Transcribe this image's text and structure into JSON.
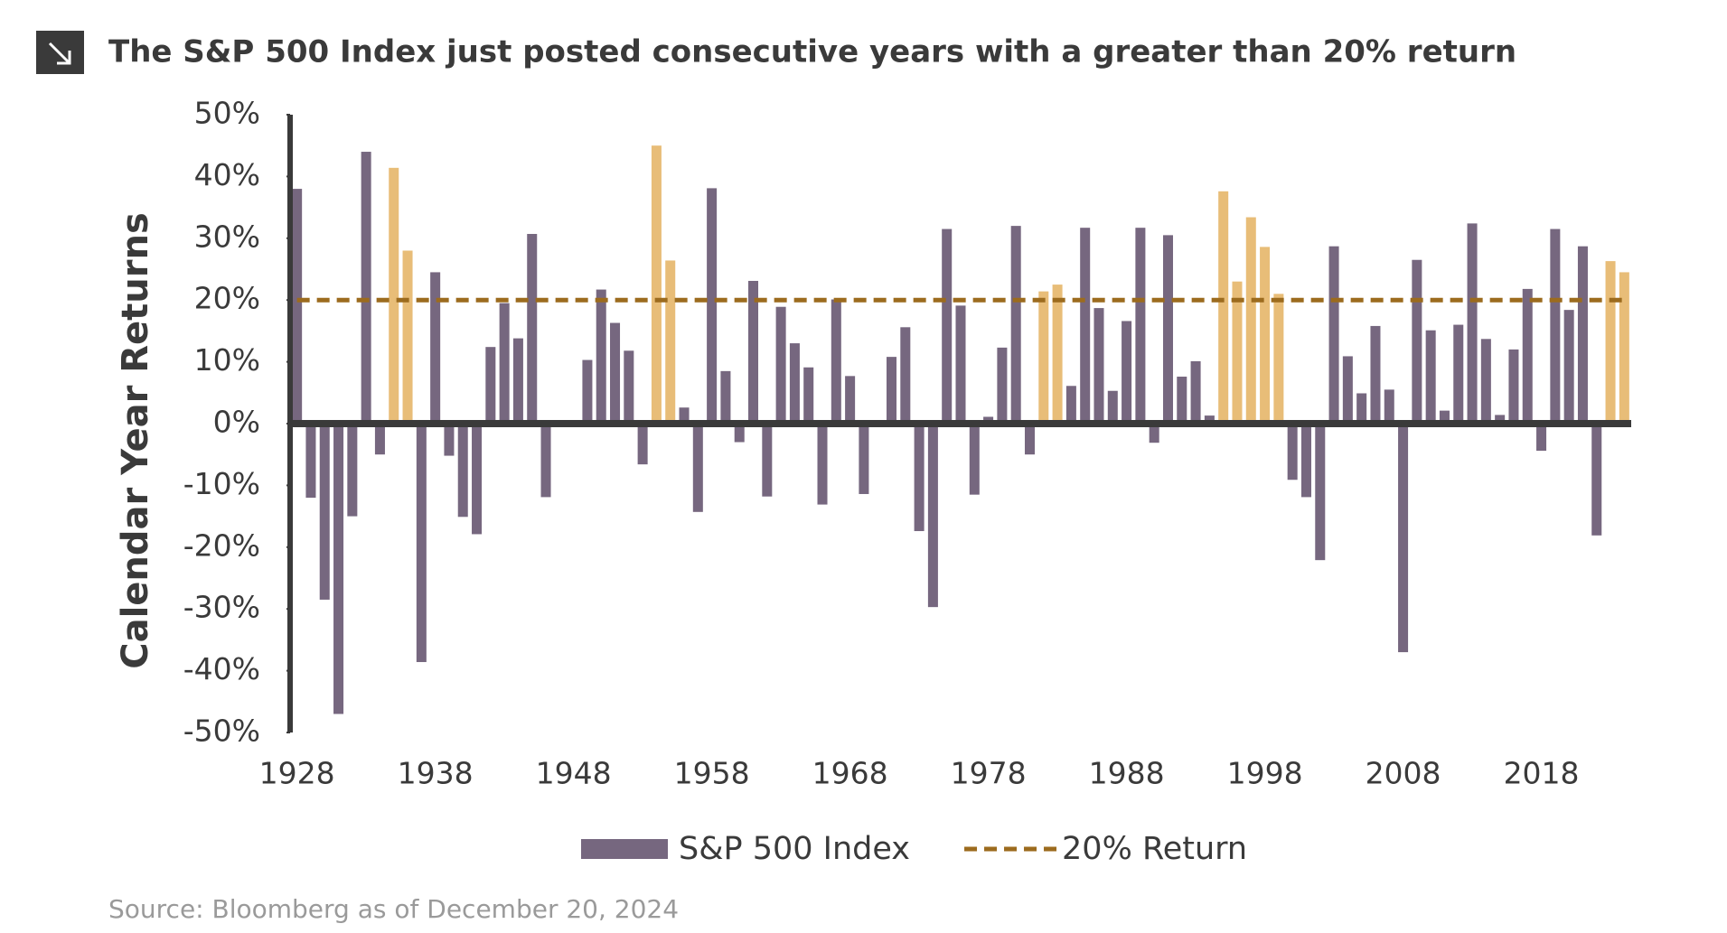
{
  "chart_data": {
    "type": "bar",
    "title": "The S&P 500 Index just posted consecutive years with a greater than 20% return",
    "y_label": "Calendar Year Returns",
    "source": "Source: Bloomberg as of December 20, 2024",
    "x": [
      1928,
      1929,
      1930,
      1931,
      1932,
      1933,
      1934,
      1935,
      1936,
      1937,
      1938,
      1939,
      1940,
      1941,
      1942,
      1943,
      1944,
      1945,
      1946,
      1947,
      1948,
      1949,
      1950,
      1951,
      1952,
      1953,
      1954,
      1955,
      1956,
      1957,
      1958,
      1959,
      1960,
      1961,
      1962,
      1963,
      1964,
      1965,
      1966,
      1967,
      1968,
      1969,
      1970,
      1971,
      1972,
      1973,
      1974,
      1975,
      1976,
      1977,
      1978,
      1979,
      1980,
      1981,
      1982,
      1983,
      1984,
      1985,
      1986,
      1987,
      1988,
      1989,
      1990,
      1991,
      1992,
      1993,
      1994,
      1995,
      1996,
      1997,
      1998,
      1999,
      2000,
      2001,
      2002,
      2003,
      2004,
      2005,
      2006,
      2007,
      2008,
      2009,
      2010,
      2011,
      2012,
      2013,
      2014,
      2015,
      2016,
      2017,
      2018,
      2019,
      2020,
      2021,
      2022,
      2023,
      2024
    ],
    "xlim": [
      1927.5,
      2024.5
    ],
    "xticks": [
      1928,
      1938,
      1948,
      1958,
      1968,
      1978,
      1988,
      1998,
      2008,
      2018
    ],
    "ylim": [
      -50,
      50
    ],
    "yticks": [
      {
        "value": -50,
        "label": "-50%"
      },
      {
        "value": -40,
        "label": "-40%"
      },
      {
        "value": -30,
        "label": "-30%"
      },
      {
        "value": -20,
        "label": "-20%"
      },
      {
        "value": -10,
        "label": "-10%"
      },
      {
        "value": 0,
        "label": "0%"
      },
      {
        "value": 10,
        "label": "10%"
      },
      {
        "value": 20,
        "label": "20%"
      },
      {
        "value": 30,
        "label": "30%"
      },
      {
        "value": 40,
        "label": "40%"
      },
      {
        "value": 50,
        "label": "50%"
      }
    ],
    "series": [
      {
        "name": "S&P 500 Index",
        "color": "#76677f",
        "values": [
          38,
          -12,
          -28.5,
          -47,
          -15,
          44,
          -5,
          41.4,
          28,
          -38.6,
          24.5,
          -5.2,
          -15.1,
          -17.9,
          12.4,
          19.5,
          13.8,
          30.7,
          -11.9,
          0,
          0,
          10.3,
          21.7,
          16.3,
          11.8,
          -6.6,
          45,
          26.4,
          2.6,
          -14.3,
          38.1,
          8.5,
          -3,
          23.1,
          -11.8,
          18.9,
          13,
          9.1,
          -13.1,
          20.1,
          7.7,
          -11.4,
          0.1,
          10.8,
          15.6,
          -17.4,
          -29.7,
          31.5,
          19.1,
          -11.5,
          1.1,
          12.3,
          32,
          -5,
          21.4,
          22.5,
          6.1,
          31.7,
          18.7,
          5.3,
          16.6,
          31.7,
          -3.1,
          30.5,
          7.6,
          10.1,
          1.3,
          37.6,
          23,
          33.4,
          28.6,
          21,
          -9.1,
          -11.9,
          -22.1,
          28.7,
          10.9,
          4.9,
          15.8,
          5.5,
          -37,
          26.5,
          15.1,
          2.1,
          16,
          32.4,
          13.7,
          1.4,
          12,
          21.8,
          -4.4,
          31.5,
          18.4,
          28.7,
          -18.1,
          26.3,
          24.5
        ],
        "colors": [
          "#76677f",
          "#76677f",
          "#76677f",
          "#76677f",
          "#76677f",
          "#76677f",
          "#76677f",
          "#e8bd78",
          "#e8bd78",
          "#76677f",
          "#76677f",
          "#76677f",
          "#76677f",
          "#76677f",
          "#76677f",
          "#76677f",
          "#76677f",
          "#76677f",
          "#76677f",
          "#76677f",
          "#76677f",
          "#76677f",
          "#76677f",
          "#76677f",
          "#76677f",
          "#76677f",
          "#e8bd78",
          "#e8bd78",
          "#76677f",
          "#76677f",
          "#76677f",
          "#76677f",
          "#76677f",
          "#76677f",
          "#76677f",
          "#76677f",
          "#76677f",
          "#76677f",
          "#76677f",
          "#76677f",
          "#76677f",
          "#76677f",
          "#76677f",
          "#76677f",
          "#76677f",
          "#76677f",
          "#76677f",
          "#76677f",
          "#76677f",
          "#76677f",
          "#76677f",
          "#76677f",
          "#76677f",
          "#76677f",
          "#e8bd78",
          "#e8bd78",
          "#76677f",
          "#76677f",
          "#76677f",
          "#76677f",
          "#76677f",
          "#76677f",
          "#76677f",
          "#76677f",
          "#76677f",
          "#76677f",
          "#76677f",
          "#e8bd78",
          "#e8bd78",
          "#e8bd78",
          "#e8bd78",
          "#e8bd78",
          "#76677f",
          "#76677f",
          "#76677f",
          "#76677f",
          "#76677f",
          "#76677f",
          "#76677f",
          "#76677f",
          "#76677f",
          "#76677f",
          "#76677f",
          "#76677f",
          "#76677f",
          "#76677f",
          "#76677f",
          "#76677f",
          "#76677f",
          "#76677f",
          "#76677f",
          "#76677f",
          "#76677f",
          "#76677f",
          "#76677f",
          "#e8bd78",
          "#e8bd78"
        ]
      },
      {
        "name": "20% Return",
        "color": "#9c6b1e",
        "type": "line",
        "dash": true,
        "x": [
          1928,
          2024
        ],
        "values": [
          20,
          20
        ]
      }
    ]
  }
}
